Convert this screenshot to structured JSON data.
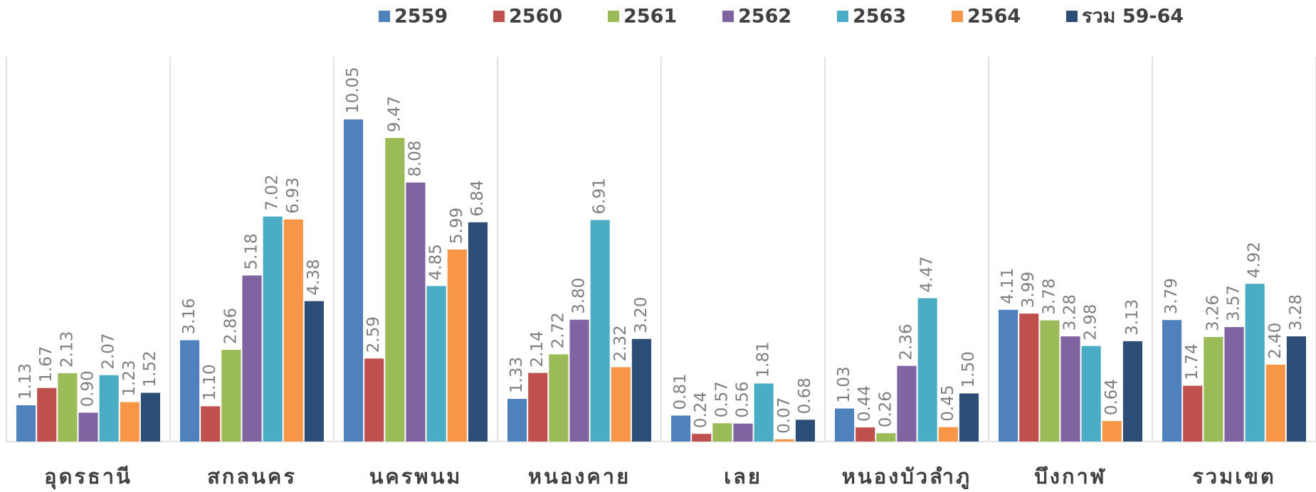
{
  "chart_data": {
    "type": "bar",
    "categories": [
      "อุดรธานี",
      "สกลนคร",
      "นครพนม",
      "หนองคาย",
      "เลย",
      "หนองบัวลำภู",
      "บึงกาฬ",
      "รวมเขต"
    ],
    "series": [
      {
        "name": "2559",
        "color": "#4f81bd",
        "values": [
          1.13,
          3.16,
          10.05,
          1.33,
          0.81,
          1.03,
          4.11,
          3.79
        ],
        "value_labels": [
          "1.13",
          "3.16",
          "10.05",
          "1.33",
          "0.81",
          "1.03",
          "4.11",
          "3.79"
        ]
      },
      {
        "name": "2560",
        "color": "#c0504d",
        "values": [
          1.67,
          1.1,
          2.59,
          2.14,
          0.24,
          0.44,
          3.99,
          1.74
        ],
        "value_labels": [
          "1.67",
          "1.10",
          "2.59",
          "2.14",
          "0.24",
          "0.44",
          "3.99",
          "1.74"
        ]
      },
      {
        "name": "2561",
        "color": "#9bbb59",
        "values": [
          2.13,
          2.86,
          9.47,
          2.72,
          0.57,
          0.26,
          3.78,
          3.26
        ],
        "value_labels": [
          "2.13",
          "2.86",
          "9.47",
          "2.72",
          "0.57",
          "0.26",
          "3.78",
          "3.26"
        ]
      },
      {
        "name": "2562",
        "color": "#8064a2",
        "values": [
          0.9,
          5.18,
          8.08,
          3.8,
          0.56,
          2.36,
          3.28,
          3.57
        ],
        "value_labels": [
          "0.90",
          "5.18",
          "8.08",
          "3.80",
          "0.56",
          "2.36",
          "3.28",
          "3.57"
        ]
      },
      {
        "name": "2563",
        "color": "#4bacc6",
        "values": [
          2.07,
          7.02,
          4.85,
          6.91,
          1.81,
          4.47,
          2.98,
          4.92
        ],
        "value_labels": [
          "2.07",
          "7.02",
          "4.85",
          "6.91",
          "1.81",
          "4.47",
          "2.98",
          "4.92"
        ]
      },
      {
        "name": "2564",
        "color": "#f79646",
        "values": [
          1.23,
          6.93,
          5.99,
          2.32,
          0.07,
          0.45,
          0.64,
          2.4
        ],
        "value_labels": [
          "1.23",
          "6.93",
          "5.99",
          "2.32",
          "0.07",
          "0.45",
          "0.64",
          "2.40"
        ]
      },
      {
        "name": "รวม 59-64",
        "color": "#2c4d75",
        "values": [
          1.52,
          4.38,
          6.84,
          3.2,
          0.68,
          1.5,
          3.13,
          3.28
        ],
        "value_labels": [
          "1.52",
          "4.38",
          "6.84",
          "3.20",
          "0.68",
          "1.50",
          "3.13",
          "3.28"
        ]
      }
    ],
    "ylim": [
      0,
      12
    ],
    "legend": "top"
  }
}
